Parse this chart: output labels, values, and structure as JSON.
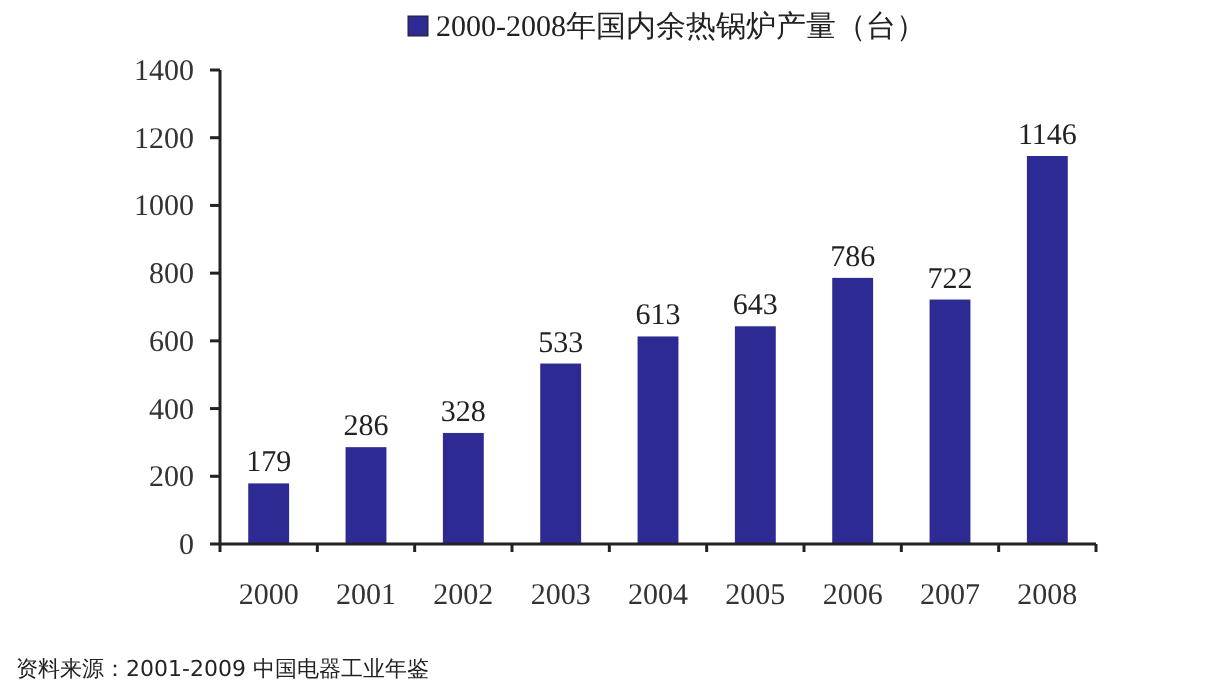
{
  "chart_data": {
    "type": "bar",
    "categories": [
      "2000",
      "2001",
      "2002",
      "2003",
      "2004",
      "2005",
      "2006",
      "2007",
      "2008"
    ],
    "series": [
      {
        "name": "2000-2008年国内余热锅炉产量（台）",
        "color": "#2e2a94",
        "values": [
          179,
          286,
          328,
          533,
          613,
          643,
          786,
          722,
          1146
        ]
      }
    ],
    "ylim": [
      0,
      1400
    ],
    "yticks": [
      0,
      200,
      400,
      600,
      800,
      1000,
      1200,
      1400
    ],
    "data_labels": true,
    "legend": "top",
    "grid": false,
    "annotations": [
      "资料来源：2001-2009 中国电器工业年鉴"
    ]
  }
}
